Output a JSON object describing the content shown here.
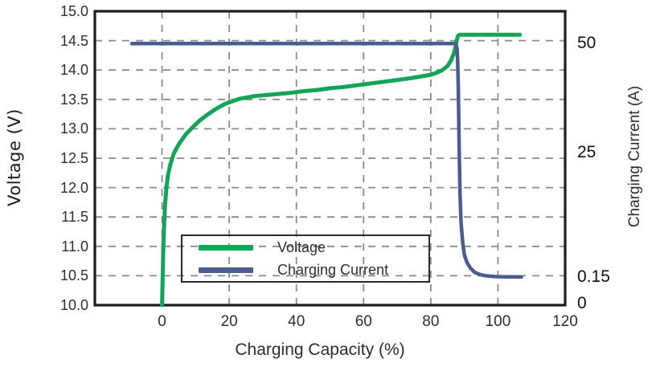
{
  "chart_data": {
    "type": "line",
    "title": "",
    "xlabel": "Charging Capacity (%)",
    "ylabel_left": "Voltage (V)",
    "ylabel_right": "Charging Current (A)",
    "grid": {
      "style": "dashed",
      "color": "#8a8a8a"
    },
    "frame_color": "#1c1c1c",
    "x_axis": {
      "min": -20,
      "max": 120,
      "ticks": [
        0,
        20,
        40,
        60,
        80,
        100,
        120
      ],
      "tick_labels": [
        "0",
        "20",
        "40",
        "60",
        "80",
        "100",
        "120"
      ]
    },
    "y_axis_left": {
      "min": 10.0,
      "max": 15.0,
      "ticks": [
        15.0,
        14.5,
        14.0,
        13.5,
        13.0,
        12.5,
        12.0,
        11.5,
        11.0,
        10.5,
        10.0
      ],
      "tick_labels": [
        "15.0",
        "14.5",
        "14.0",
        "13.5",
        "13.0",
        "12.5",
        "12.0",
        "11.5",
        "11.0",
        "10.5",
        "10.0"
      ]
    },
    "y_axis_right": {
      "labels": [
        {
          "value": 50,
          "text": "50"
        },
        {
          "value": 25,
          "text": "25"
        },
        {
          "value": 0.15,
          "text": "0.15"
        },
        {
          "value": 0,
          "text": "0"
        }
      ],
      "value_to_left_equiv": [
        [
          0,
          10.03
        ],
        [
          0.15,
          10.48
        ],
        [
          25,
          12.6
        ],
        [
          50,
          14.45
        ]
      ]
    },
    "legend": {
      "position": "inside-bottom-left"
    },
    "series": [
      {
        "name": "Voltage",
        "axis": "left",
        "color": "#12a457",
        "stroke_width": 5,
        "points": [
          [
            0,
            10.0
          ],
          [
            0.2,
            10.5
          ],
          [
            0.4,
            11.0
          ],
          [
            0.6,
            11.35
          ],
          [
            0.9,
            11.7
          ],
          [
            1.3,
            12.0
          ],
          [
            1.8,
            12.22
          ],
          [
            2.5,
            12.4
          ],
          [
            3.5,
            12.58
          ],
          [
            5,
            12.74
          ],
          [
            7,
            12.9
          ],
          [
            9,
            13.02
          ],
          [
            11,
            13.13
          ],
          [
            13,
            13.22
          ],
          [
            15,
            13.3
          ],
          [
            17,
            13.37
          ],
          [
            19,
            13.43
          ],
          [
            21,
            13.47
          ],
          [
            23,
            13.51
          ],
          [
            25,
            13.53
          ],
          [
            27,
            13.55
          ],
          [
            28,
            13.56
          ],
          [
            30,
            13.57
          ],
          [
            34,
            13.59
          ],
          [
            38,
            13.61
          ],
          [
            42,
            13.64
          ],
          [
            46,
            13.66
          ],
          [
            50,
            13.69
          ],
          [
            54,
            13.71
          ],
          [
            58,
            13.74
          ],
          [
            62,
            13.77
          ],
          [
            66,
            13.8
          ],
          [
            70,
            13.83
          ],
          [
            74,
            13.86
          ],
          [
            78,
            13.9
          ],
          [
            80,
            13.92
          ],
          [
            82,
            13.96
          ],
          [
            83.5,
            14.0
          ],
          [
            85,
            14.07
          ],
          [
            86,
            14.16
          ],
          [
            86.8,
            14.27
          ],
          [
            87.4,
            14.4
          ],
          [
            87.8,
            14.52
          ],
          [
            88.1,
            14.58
          ],
          [
            88.5,
            14.6
          ],
          [
            92,
            14.6
          ],
          [
            96,
            14.6
          ],
          [
            100,
            14.6
          ],
          [
            106.5,
            14.6
          ]
        ]
      },
      {
        "name": "Charging Current",
        "axis": "right",
        "color": "#4a5c92",
        "stroke_width": 4.5,
        "points": [
          [
            -9,
            50
          ],
          [
            -5,
            50
          ],
          [
            0,
            50
          ],
          [
            10,
            50
          ],
          [
            20,
            50
          ],
          [
            30,
            50
          ],
          [
            40,
            50
          ],
          [
            50,
            50
          ],
          [
            60,
            50
          ],
          [
            70,
            50
          ],
          [
            80,
            50
          ],
          [
            84,
            50
          ],
          [
            86,
            50
          ],
          [
            87.3,
            50
          ],
          [
            87.8,
            49
          ],
          [
            88,
            46
          ],
          [
            88.2,
            40
          ],
          [
            88.35,
            32
          ],
          [
            88.5,
            24
          ],
          [
            88.7,
            17
          ],
          [
            89,
            11
          ],
          [
            89.5,
            7
          ],
          [
            90,
            4.6
          ],
          [
            90.8,
            3
          ],
          [
            91.8,
            1.9
          ],
          [
            93,
            1.1
          ],
          [
            94.5,
            0.65
          ],
          [
            96,
            0.42
          ],
          [
            97.5,
            0.3
          ],
          [
            99,
            0.23
          ],
          [
            100.5,
            0.19
          ],
          [
            102,
            0.17
          ],
          [
            104,
            0.155
          ],
          [
            107,
            0.15
          ]
        ]
      }
    ]
  }
}
